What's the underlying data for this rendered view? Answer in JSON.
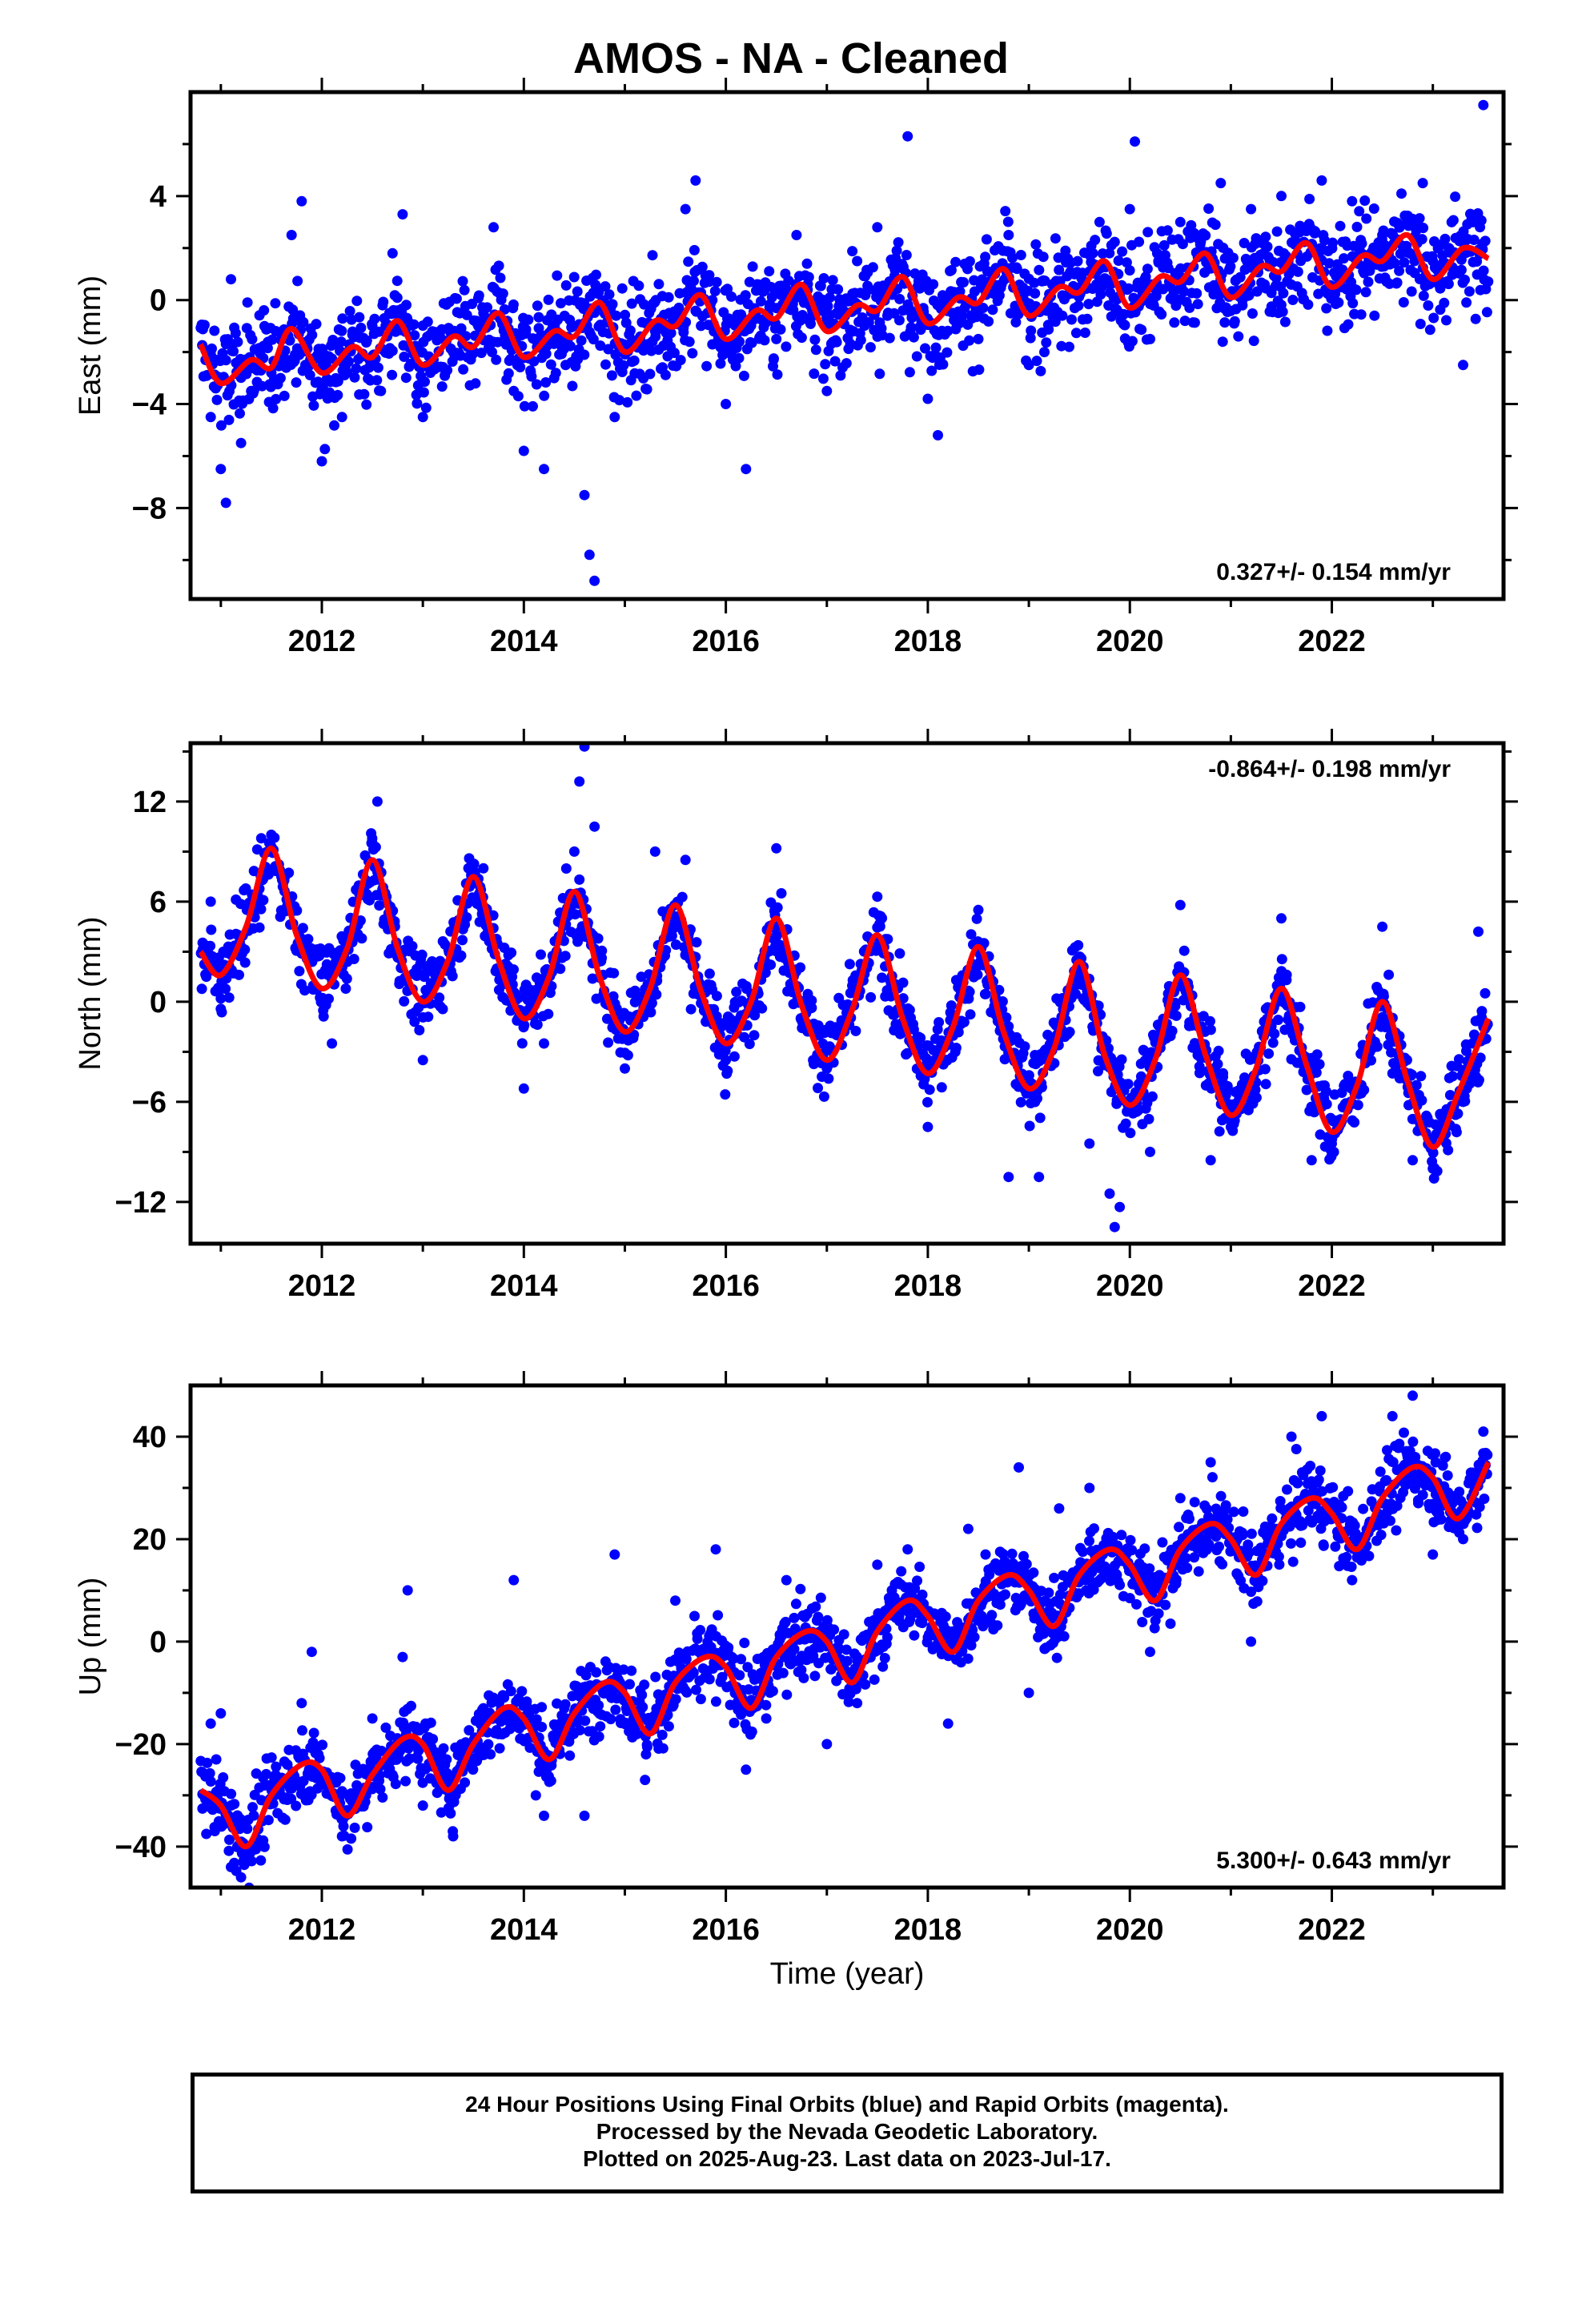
{
  "title": "AMOS  - NA - Cleaned",
  "chart_data": [
    {
      "type": "scatter",
      "ylabel": "East (mm)",
      "xlabel": "",
      "xlim": [
        2010.7,
        2023.7
      ],
      "ylim": [
        -11.5,
        8.0
      ],
      "xticks": [
        2012,
        2014,
        2016,
        2018,
        2020,
        2022
      ],
      "yticks": [
        -8,
        -4,
        0,
        4
      ],
      "rate_label": "0.327+/- 0.154 mm/yr",
      "rate_position": "bottom-right",
      "point_color": "#0000ff",
      "model_color": "#ff0000",
      "model_x": [
        2010.8,
        2011.0,
        2011.3,
        2011.5,
        2011.7,
        2012.0,
        2012.3,
        2012.5,
        2012.75,
        2013.0,
        2013.3,
        2013.5,
        2013.75,
        2014.0,
        2014.3,
        2014.5,
        2014.75,
        2015.0,
        2015.3,
        2015.5,
        2015.75,
        2016.0,
        2016.3,
        2016.5,
        2016.75,
        2017.0,
        2017.3,
        2017.5,
        2017.75,
        2018.0,
        2018.3,
        2018.5,
        2018.75,
        2019.0,
        2019.3,
        2019.5,
        2019.75,
        2020.0,
        2020.3,
        2020.5,
        2020.75,
        2021.0,
        2021.3,
        2021.5,
        2021.75,
        2022.0,
        2022.3,
        2022.5,
        2022.75,
        2023.0,
        2023.3,
        2023.55
      ],
      "model_y": [
        -1.7,
        -3.2,
        -2.3,
        -2.6,
        -1.1,
        -2.8,
        -1.8,
        -2.2,
        -0.8,
        -2.5,
        -1.4,
        -1.8,
        -0.5,
        -2.2,
        -1.2,
        -1.4,
        -0.1,
        -2.0,
        -0.8,
        -1.0,
        0.2,
        -1.5,
        -0.4,
        -0.7,
        0.6,
        -1.2,
        -0.2,
        -0.4,
        0.9,
        -0.9,
        0.1,
        -0.1,
        1.2,
        -0.6,
        0.5,
        0.3,
        1.5,
        -0.3,
        0.9,
        0.7,
        1.8,
        0.1,
        1.3,
        1.1,
        2.2,
        0.5,
        1.7,
        1.5,
        2.5,
        0.8,
        2.0,
        1.6
      ],
      "scatter_points": [
        [
          2010.9,
          -4.5
        ],
        [
          2011.0,
          -6.5
        ],
        [
          2011.05,
          -7.8
        ],
        [
          2011.1,
          0.8
        ],
        [
          2011.2,
          -5.5
        ],
        [
          2011.3,
          -3.5
        ],
        [
          2011.5,
          -2.8
        ],
        [
          2011.6,
          -1.5
        ],
        [
          2011.7,
          2.5
        ],
        [
          2011.8,
          3.8
        ],
        [
          2012.0,
          -6.2
        ],
        [
          2012.2,
          -4.5
        ],
        [
          2012.5,
          -1.0
        ],
        [
          2012.7,
          1.8
        ],
        [
          2012.8,
          3.3
        ],
        [
          2013.0,
          -4.5
        ],
        [
          2013.3,
          -2.0
        ],
        [
          2013.6,
          -0.5
        ],
        [
          2013.7,
          2.8
        ],
        [
          2013.9,
          -3.5
        ],
        [
          2014.0,
          -5.8
        ],
        [
          2014.2,
          -6.5
        ],
        [
          2014.3,
          -3.0
        ],
        [
          2014.6,
          -7.5
        ],
        [
          2014.65,
          -9.8
        ],
        [
          2014.7,
          -10.8
        ],
        [
          2014.9,
          -4.5
        ],
        [
          2015.3,
          -1.2
        ],
        [
          2015.6,
          3.5
        ],
        [
          2015.7,
          4.6
        ],
        [
          2016.0,
          -4.0
        ],
        [
          2016.2,
          -6.5
        ],
        [
          2016.5,
          -1.5
        ],
        [
          2016.7,
          2.5
        ],
        [
          2017.0,
          -3.5
        ],
        [
          2017.3,
          1.5
        ],
        [
          2017.5,
          2.8
        ],
        [
          2017.8,
          6.3
        ],
        [
          2018.0,
          -3.8
        ],
        [
          2018.1,
          -5.2
        ],
        [
          2018.5,
          -1.5
        ],
        [
          2018.8,
          2.5
        ],
        [
          2019.0,
          -2.5
        ],
        [
          2019.4,
          -1.8
        ],
        [
          2019.7,
          3.0
        ],
        [
          2020.0,
          3.5
        ],
        [
          2020.05,
          6.1
        ],
        [
          2020.2,
          -1.5
        ],
        [
          2020.5,
          3.0
        ],
        [
          2020.9,
          4.5
        ],
        [
          2021.2,
          3.5
        ],
        [
          2021.5,
          4.0
        ],
        [
          2021.9,
          4.6
        ],
        [
          2022.2,
          3.8
        ],
        [
          2022.5,
          2.5
        ],
        [
          2022.9,
          4.5
        ],
        [
          2023.0,
          1.5
        ],
        [
          2023.3,
          -2.5
        ],
        [
          2023.5,
          7.5
        ]
      ]
    },
    {
      "type": "scatter",
      "ylabel": "North (mm)",
      "xlabel": "",
      "xlim": [
        2010.7,
        2023.7
      ],
      "ylim": [
        -14.5,
        15.5
      ],
      "xticks": [
        2012,
        2014,
        2016,
        2018,
        2020,
        2022
      ],
      "yticks": [
        -12,
        -6,
        0,
        6,
        12
      ],
      "rate_label": "-0.864+/- 0.198 mm/yr",
      "rate_position": "top-right",
      "point_color": "#0000ff",
      "model_color": "#ff0000",
      "model_x": [
        2010.8,
        2011.0,
        2011.25,
        2011.5,
        2011.75,
        2012.0,
        2012.25,
        2012.5,
        2012.75,
        2013.0,
        2013.25,
        2013.5,
        2013.75,
        2014.0,
        2014.25,
        2014.5,
        2014.75,
        2015.0,
        2015.25,
        2015.5,
        2015.75,
        2016.0,
        2016.25,
        2016.5,
        2016.75,
        2017.0,
        2017.25,
        2017.5,
        2017.75,
        2018.0,
        2018.25,
        2018.5,
        2018.75,
        2019.0,
        2019.25,
        2019.5,
        2019.75,
        2020.0,
        2020.25,
        2020.5,
        2020.75,
        2021.0,
        2021.25,
        2021.5,
        2021.75,
        2022.0,
        2022.25,
        2022.5,
        2022.75,
        2023.0,
        2023.25,
        2023.55
      ],
      "model_y": [
        3.0,
        1.6,
        4.5,
        9.2,
        4.0,
        0.8,
        3.2,
        8.5,
        3.2,
        0.0,
        2.5,
        7.5,
        2.5,
        -1.0,
        1.5,
        6.6,
        1.5,
        -1.8,
        0.8,
        5.8,
        0.7,
        -2.5,
        0.0,
        5.0,
        -0.2,
        -3.5,
        -0.5,
        4.0,
        -1.0,
        -4.3,
        -1.5,
        3.3,
        -1.8,
        -5.2,
        -2.8,
        2.4,
        -3.2,
        -6.2,
        -3.5,
        1.6,
        -3.2,
        -6.8,
        -4.0,
        0.8,
        -3.8,
        -7.8,
        -5.0,
        0.0,
        -4.8,
        -8.7,
        -5.5,
        -1.0
      ],
      "scatter_points": [
        [
          2010.9,
          6.0
        ],
        [
          2011.0,
          0.2
        ],
        [
          2011.4,
          9.8
        ],
        [
          2011.6,
          7.5
        ],
        [
          2012.1,
          -2.5
        ],
        [
          2012.5,
          9.5
        ],
        [
          2012.55,
          12.0
        ],
        [
          2013.0,
          -3.5
        ],
        [
          2013.6,
          8.0
        ],
        [
          2014.0,
          -5.2
        ],
        [
          2014.2,
          -2.5
        ],
        [
          2014.5,
          9.0
        ],
        [
          2014.55,
          13.2
        ],
        [
          2014.6,
          15.3
        ],
        [
          2014.7,
          10.5
        ],
        [
          2015.0,
          -4.0
        ],
        [
          2015.3,
          9.0
        ],
        [
          2015.6,
          8.5
        ],
        [
          2016.0,
          -3.5
        ],
        [
          2016.5,
          9.2
        ],
        [
          2016.55,
          6.5
        ],
        [
          2017.0,
          -4.0
        ],
        [
          2017.5,
          6.3
        ],
        [
          2018.0,
          -7.5
        ],
        [
          2018.5,
          5.5
        ],
        [
          2018.8,
          -10.5
        ],
        [
          2019.1,
          -10.5
        ],
        [
          2019.6,
          -8.5
        ],
        [
          2019.8,
          -11.5
        ],
        [
          2019.85,
          -13.5
        ],
        [
          2019.9,
          -12.3
        ],
        [
          2020.2,
          -9.0
        ],
        [
          2020.5,
          5.8
        ],
        [
          2020.8,
          -9.5
        ],
        [
          2021.0,
          -7.5
        ],
        [
          2021.5,
          5.0
        ],
        [
          2021.8,
          -9.5
        ],
        [
          2022.0,
          -8.5
        ],
        [
          2022.5,
          4.5
        ],
        [
          2022.8,
          -9.5
        ],
        [
          2023.0,
          -10.0
        ],
        [
          2023.3,
          -6.0
        ],
        [
          2023.45,
          4.2
        ],
        [
          2023.5,
          -1.5
        ]
      ]
    },
    {
      "type": "scatter",
      "ylabel": "Up (mm)",
      "xlabel": "Time (year)",
      "xlim": [
        2010.7,
        2023.7
      ],
      "ylim": [
        -48,
        50
      ],
      "xticks": [
        2012,
        2014,
        2016,
        2018,
        2020,
        2022
      ],
      "yticks": [
        -40,
        -20,
        0,
        20,
        40
      ],
      "rate_label": "5.300+/- 0.643 mm/yr",
      "rate_position": "bottom-right",
      "point_color": "#0000ff",
      "model_color": "#ff0000",
      "model_x": [
        2010.8,
        2011.0,
        2011.25,
        2011.5,
        2011.8,
        2012.0,
        2012.25,
        2012.5,
        2012.8,
        2013.0,
        2013.25,
        2013.5,
        2013.8,
        2014.0,
        2014.25,
        2014.5,
        2014.8,
        2015.0,
        2015.25,
        2015.5,
        2015.8,
        2016.0,
        2016.25,
        2016.5,
        2016.8,
        2017.0,
        2017.25,
        2017.5,
        2017.8,
        2018.0,
        2018.25,
        2018.5,
        2018.8,
        2019.0,
        2019.25,
        2019.5,
        2019.8,
        2020.0,
        2020.25,
        2020.5,
        2020.8,
        2021.0,
        2021.25,
        2021.5,
        2021.8,
        2022.0,
        2022.25,
        2022.5,
        2022.8,
        2023.0,
        2023.25,
        2023.55
      ],
      "model_y": [
        -29,
        -32,
        -40,
        -30,
        -24,
        -25,
        -34,
        -26,
        -19,
        -20,
        -29,
        -20,
        -13,
        -15,
        -23,
        -14,
        -8,
        -10,
        -18,
        -8,
        -3,
        -5,
        -13,
        -3,
        2,
        0,
        -8,
        2,
        8,
        5,
        -2,
        8,
        13,
        10,
        3,
        13,
        18,
        15,
        8,
        18,
        23,
        20,
        13,
        23,
        28,
        25,
        18,
        28,
        34,
        32,
        24,
        35
      ],
      "scatter_points": [
        [
          2010.9,
          -16
        ],
        [
          2011.0,
          -14
        ],
        [
          2011.1,
          -44
        ],
        [
          2011.2,
          -46
        ],
        [
          2011.5,
          -28
        ],
        [
          2011.8,
          -12
        ],
        [
          2011.9,
          -2
        ],
        [
          2012.2,
          -38
        ],
        [
          2012.5,
          -15
        ],
        [
          2012.8,
          -3
        ],
        [
          2012.85,
          10
        ],
        [
          2013.0,
          -32
        ],
        [
          2013.3,
          -38
        ],
        [
          2013.6,
          -13
        ],
        [
          2013.9,
          12
        ],
        [
          2014.2,
          -34
        ],
        [
          2014.4,
          -13
        ],
        [
          2014.6,
          -34
        ],
        [
          2014.9,
          17
        ],
        [
          2015.2,
          -27
        ],
        [
          2015.5,
          8
        ],
        [
          2015.9,
          18
        ],
        [
          2016.2,
          -25
        ],
        [
          2016.4,
          -15
        ],
        [
          2016.6,
          12
        ],
        [
          2017.0,
          -20
        ],
        [
          2017.3,
          -12
        ],
        [
          2017.5,
          15
        ],
        [
          2017.8,
          18
        ],
        [
          2018.2,
          -16
        ],
        [
          2018.4,
          22
        ],
        [
          2018.9,
          34
        ],
        [
          2019.0,
          -10
        ],
        [
          2019.3,
          26
        ],
        [
          2019.6,
          30
        ],
        [
          2020.2,
          -2
        ],
        [
          2020.5,
          28
        ],
        [
          2020.8,
          35
        ],
        [
          2021.2,
          0
        ],
        [
          2021.6,
          40
        ],
        [
          2021.9,
          44
        ],
        [
          2022.2,
          12
        ],
        [
          2022.6,
          44
        ],
        [
          2022.8,
          48
        ],
        [
          2023.0,
          17
        ],
        [
          2023.3,
          20
        ],
        [
          2023.5,
          41
        ]
      ]
    }
  ],
  "footer": {
    "line1": "24 Hour Positions Using Final Orbits (blue) and Rapid Orbits (magenta).",
    "line2": "Processed by the Nevada Geodetic Laboratory.",
    "line3": "Plotted on 2025-Aug-23. Last data on 2023-Jul-17."
  }
}
